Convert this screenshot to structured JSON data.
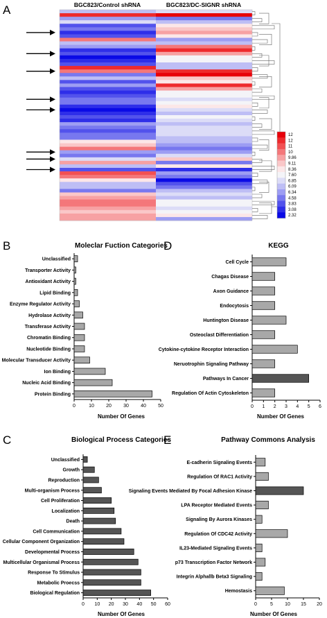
{
  "panels": {
    "a": "A",
    "b": "B",
    "c": "C",
    "d": "D",
    "e": "E"
  },
  "heatmap": {
    "col1_label": "BGC823/Control shRNA",
    "col2_label": "BGC823/DC-SIGNR shRNA",
    "scale_labels": [
      "12",
      "12",
      "11",
      "10",
      "9.86",
      "9.11",
      "8.36",
      "7.60",
      "6.85",
      "6.09",
      "6.34",
      "4.58",
      "3.83",
      "3.08",
      "2.32"
    ],
    "scale_colors": [
      "#e8000a",
      "#ee2a2d",
      "#f25053",
      "#f4777a",
      "#f7a1a3",
      "#fac7c8",
      "#fce7e8",
      "#f4f4f8",
      "#dcdcf7",
      "#bebef5",
      "#9d9df3",
      "#7878ef",
      "#5252ec",
      "#2e2ee9",
      "#0a0ae6"
    ],
    "arrow_rows": [
      6,
      12,
      17,
      25,
      28,
      40,
      42,
      45
    ]
  },
  "chart_data": [
    {
      "panel": "B",
      "type": "bar",
      "title": "Moleclar Fuction Categories",
      "xlabel": "Number Of Genes",
      "ylabel": "",
      "xlim": [
        0,
        50
      ],
      "ticks": [
        "0",
        "10",
        "20",
        "30",
        "40",
        "50"
      ],
      "categories": [
        "Unclassified",
        "Transporter Activity",
        "Antioxidant Activity",
        "Lipid Binding",
        "Enzyme Regulator Activity",
        "Hydrolase Activity",
        "Transferase Activity",
        "Chromatin Binding",
        "Nucleotide Binding",
        "Molecular Transducer Activity",
        "Ion Binding",
        "Nucleic Acid Binding",
        "Protein Binding"
      ],
      "values": [
        2,
        1,
        1,
        2,
        3,
        5,
        6,
        6,
        6,
        9,
        18,
        22,
        45
      ],
      "color": "#a8a8a8"
    },
    {
      "panel": "D",
      "type": "bar",
      "title": "KEGG",
      "xlabel": "Number Of Genes",
      "ylabel": "",
      "xlim": [
        0,
        6
      ],
      "ticks": [
        "0",
        "1",
        "2",
        "3",
        "4",
        "5",
        "6"
      ],
      "categories": [
        "Cell Cycle",
        "Chagas Disease",
        "Axon Guidance",
        "Endocytosis",
        "Huntington Disease",
        "Osteoclast Differentiation",
        "Cytokine-cytokine Receptor Interaction",
        "Neruotrophin Signaling Pathway",
        "Pathways In Cancer",
        "Regulation Of Actin Cytoskeleton"
      ],
      "values": [
        3,
        2,
        2,
        2,
        3,
        2,
        4,
        2,
        5,
        2
      ],
      "color": "#a8a8a8",
      "highlight": {
        "index": 8,
        "color": "#555555"
      }
    },
    {
      "panel": "C",
      "type": "bar",
      "title": "Biological Process Categories",
      "xlabel": "Number Of Genes",
      "ylabel": "",
      "xlim": [
        0,
        60
      ],
      "ticks": [
        "0",
        "10",
        "20",
        "30",
        "40",
        "50",
        "60"
      ],
      "categories": [
        "Unclassified",
        "Growth",
        "Reproduction",
        "Multi-organism Process",
        "Cell Proliferation",
        "Localization",
        "Death",
        "Cell Communication",
        "Cellular Component Organization",
        "Developmental Process",
        "Multicellular Organismal Process",
        "Response To Stimulus",
        "Metabolic Proecss",
        "Biological Regulation"
      ],
      "values": [
        3,
        8,
        11,
        13,
        20,
        22,
        23,
        27,
        29,
        36,
        39,
        41,
        41,
        48
      ],
      "color": "#555555"
    },
    {
      "panel": "E",
      "type": "bar",
      "title": "Pathway Commons Analysis",
      "xlabel": "Number Of Genes",
      "ylabel": "",
      "xlim": [
        0,
        20
      ],
      "ticks": [
        "0",
        "5",
        "10",
        "15",
        "20"
      ],
      "categories": [
        "E-cadherin Signaling Events",
        "Regulation Of RAC1 Activity",
        "Signaling Events Mediated By Focal Adhesion Kinase",
        "LPA Receptor Mediated Events",
        "Signaling By Aurora Kinases",
        "Regulation Of CDC42 Activity",
        "IL23-Mediated Signaling Events",
        "p73 Transcription Factor Network",
        "Integrin Alphallb Beta3 Signaling",
        "Hemostasis"
      ],
      "values": [
        3,
        4,
        15,
        4,
        2,
        10,
        2,
        3,
        2,
        9
      ],
      "color": "#a8a8a8",
      "highlight": {
        "index": 2,
        "color": "#555555"
      }
    }
  ]
}
